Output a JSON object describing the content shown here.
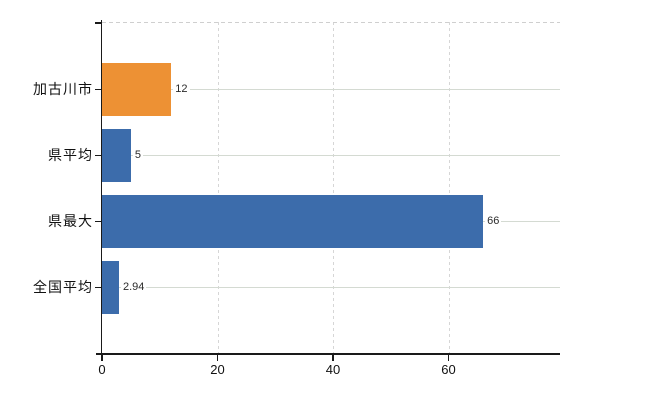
{
  "chart_data": {
    "type": "bar",
    "orientation": "horizontal",
    "title": "",
    "xlabel": "",
    "ylabel": "",
    "categories": [
      "加古川市",
      "県平均",
      "県最大",
      "全国平均"
    ],
    "values": [
      12,
      5,
      66,
      2.94
    ],
    "value_labels": [
      "12",
      "5",
      "66",
      "2.94"
    ],
    "x_ticks": [
      0,
      20,
      40,
      60
    ],
    "x_tick_labels": [
      "0",
      "20",
      "40",
      "60"
    ],
    "xlim": [
      0,
      79.3
    ],
    "grid": true,
    "legend": false,
    "bar_colors": [
      "#ED9134",
      "#3C6CAB",
      "#3C6CAB",
      "#3C6CAB"
    ]
  },
  "colors": {
    "bar_orange": "#ED9134",
    "bar_blue": "#3C6CAB",
    "axis": "#1a1a1a",
    "category_gridline": "#d4dad2",
    "vertical_gridline": "#d6d6d6",
    "top_border": "#cfcfcf",
    "label_text": "#111111",
    "value_text": "#2b2b2b",
    "background": "#ffffff"
  }
}
